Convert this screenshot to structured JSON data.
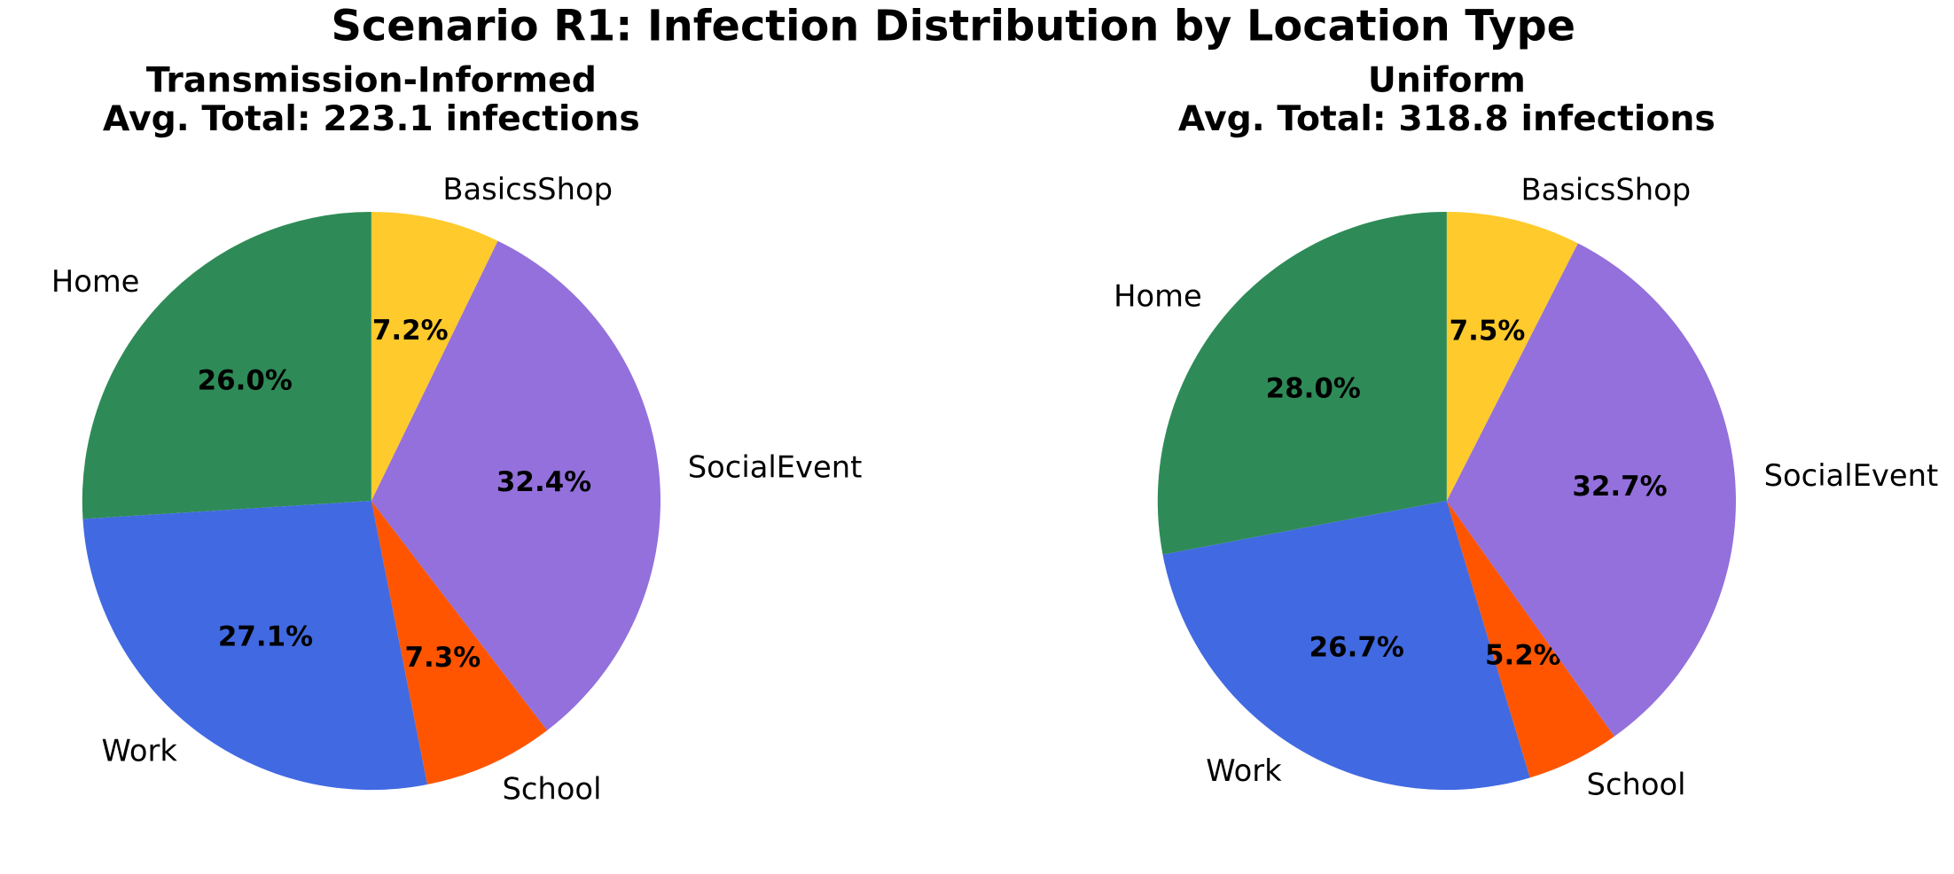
{
  "title": "Scenario R1: Infection Distribution by Location Type",
  "chart_data": [
    {
      "type": "pie",
      "title": "Transmission-Informed",
      "subtitle": "Avg. Total: 223.1 infections",
      "categories": [
        "Home",
        "Work",
        "School",
        "SocialEvent",
        "BasicsShop"
      ],
      "values": [
        26.0,
        27.1,
        7.3,
        32.4,
        7.2
      ],
      "value_labels": [
        "26.0%",
        "27.1%",
        "7.3%",
        "32.4%",
        "7.2%"
      ],
      "colors": [
        "#2e8b57",
        "#4169e1",
        "#ff5500",
        "#9370db",
        "#ffca2c"
      ]
    },
    {
      "type": "pie",
      "title": "Uniform",
      "subtitle": "Avg. Total: 318.8 infections",
      "categories": [
        "Home",
        "Work",
        "School",
        "SocialEvent",
        "BasicsShop"
      ],
      "values": [
        28.0,
        26.7,
        5.2,
        32.7,
        7.5
      ],
      "value_labels": [
        "28.0%",
        "26.7%",
        "5.2%",
        "32.7%",
        "7.5%"
      ],
      "colors": [
        "#2e8b57",
        "#4169e1",
        "#ff5500",
        "#9370db",
        "#ffca2c"
      ]
    }
  ]
}
